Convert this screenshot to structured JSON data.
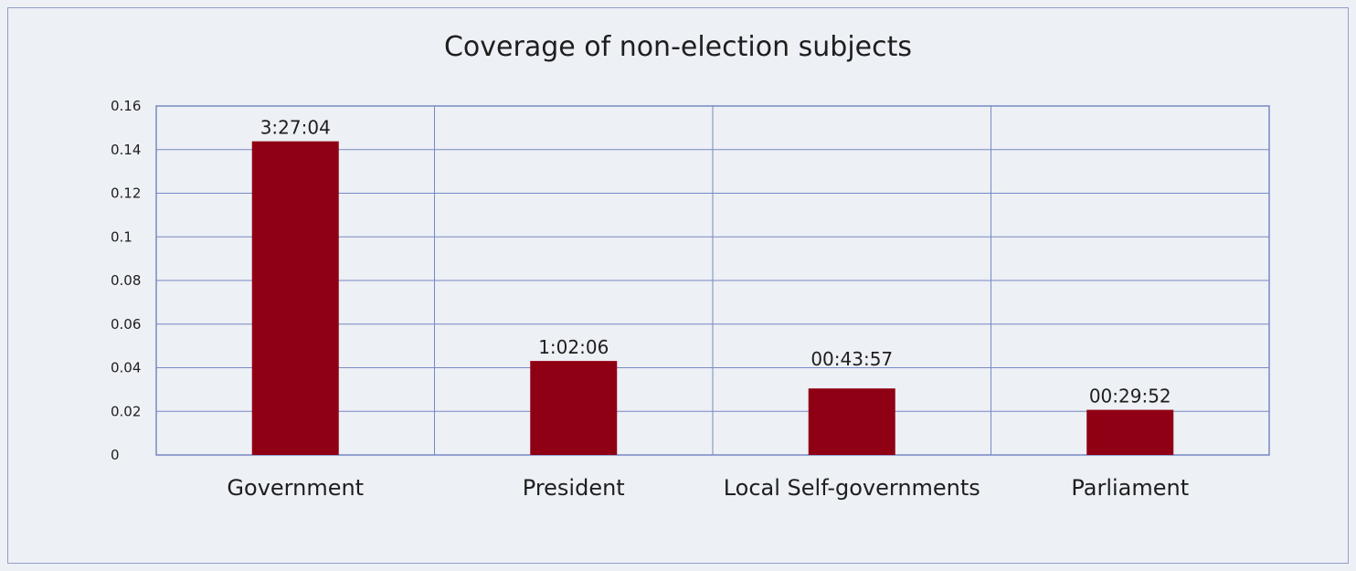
{
  "chart_data": {
    "type": "bar",
    "title": "Coverage of non-election subjects",
    "xlabel": "",
    "ylabel": "",
    "categories": [
      "Government",
      "President",
      "Local Self-governments",
      "Parliament"
    ],
    "values": [
      0.1438,
      0.0431,
      0.0305,
      0.0207
    ],
    "data_labels": [
      "3:27:04",
      "1:02:06",
      "00:43:57",
      "00:29:52"
    ],
    "ylim": [
      0,
      0.16
    ],
    "yticks": [
      "0",
      "0.02",
      "0.04",
      "0.06",
      "0.08",
      "0.1",
      "0.12",
      "0.14",
      "0.16"
    ],
    "grid": true,
    "bar_color": "#900014",
    "grid_color": "#7689c4"
  }
}
